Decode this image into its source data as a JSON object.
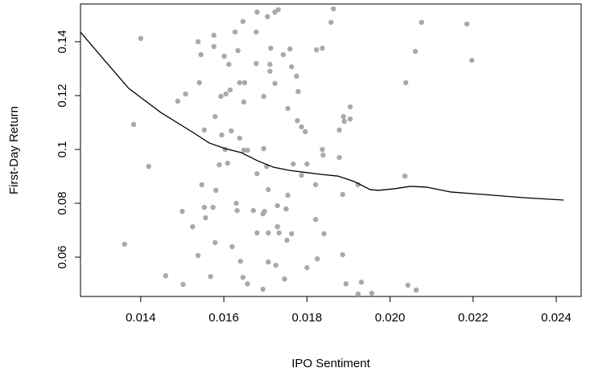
{
  "chart_data": {
    "type": "scatter",
    "x_label": "IPO Sentiment",
    "y_label": "First-Day Return",
    "xlim": [
      0.01255,
      0.0246
    ],
    "ylim": [
      0.0454,
      0.154
    ],
    "xticks": [
      0.014,
      0.016,
      0.018,
      {
        "value": 0.02,
        "label": "0.020"
      },
      0.022,
      0.024
    ],
    "yticks": [
      0.06,
      0.08,
      0.1,
      0.12,
      0.14
    ],
    "points": {
      "color": "#a9a9a9",
      "x": [
        0.014,
        0.01383,
        0.01419,
        0.01361,
        0.0146,
        0.01489,
        0.01508,
        0.01502,
        0.015,
        0.01525,
        0.01538,
        0.01545,
        0.01541,
        0.01538,
        0.01547,
        0.01553,
        0.01556,
        0.01553,
        0.01568,
        0.01574,
        0.01576,
        0.01576,
        0.01579,
        0.01581,
        0.01579,
        0.01589,
        0.01593,
        0.01595,
        0.01603,
        0.01601,
        0.01605,
        0.01615,
        0.01612,
        0.01609,
        0.01618,
        0.0162,
        0.0163,
        0.01632,
        0.01627,
        0.01634,
        0.01638,
        0.01638,
        0.0165,
        0.01646,
        0.01648,
        0.0164,
        0.01646,
        0.01657,
        0.01648,
        0.01657,
        0.01671,
        0.01678,
        0.01678,
        0.0168,
        0.0168,
        0.0168,
        0.01694,
        0.01696,
        0.01698,
        0.01694,
        0.01696,
        0.01703,
        0.01707,
        0.01705,
        0.01707,
        0.01707,
        0.01711,
        0.01711,
        0.01713,
        0.01723,
        0.01723,
        0.01725,
        0.01729,
        0.01731,
        0.01729,
        0.01733,
        0.01743,
        0.01746,
        0.0175,
        0.01752,
        0.01754,
        0.01754,
        0.01763,
        0.01763,
        0.01759,
        0.01767,
        0.01775,
        0.01777,
        0.01779,
        0.01787,
        0.01787,
        0.01796,
        0.018,
        0.018,
        0.01821,
        0.01821,
        0.01825,
        0.01823,
        0.01837,
        0.01837,
        0.01839,
        0.01841,
        0.01858,
        0.01864,
        0.01878,
        0.01878,
        0.01888,
        0.0189,
        0.01886,
        0.01886,
        0.01894,
        0.01904,
        0.01904,
        0.01923,
        0.01923,
        0.01931,
        0.01956,
        0.02036,
        0.02038,
        0.02061,
        0.02076,
        0.02043,
        0.02063,
        0.02185,
        0.02197
      ],
      "y": [
        0.1412,
        0.1093,
        0.0937,
        0.0648,
        0.0531,
        0.1179,
        0.1206,
        0.0499,
        0.077,
        0.0713,
        0.14,
        0.1352,
        0.1248,
        0.0606,
        0.0869,
        0.0785,
        0.0746,
        0.1072,
        0.0528,
        0.0785,
        0.1424,
        0.1382,
        0.1122,
        0.0848,
        0.0654,
        0.0943,
        0.1197,
        0.1054,
        0.1,
        0.1346,
        0.1206,
        0.1221,
        0.1316,
        0.0949,
        0.1069,
        0.0639,
        0.08,
        0.0773,
        0.1436,
        0.1367,
        0.1042,
        0.1248,
        0.1248,
        0.1475,
        0.1176,
        0.0585,
        0.0525,
        0.0501,
        0.0997,
        0.0997,
        0.0773,
        0.1436,
        0.1319,
        0.091,
        0.069,
        0.151,
        0.0481,
        0.1003,
        0.077,
        0.0761,
        0.1197,
        0.0937,
        0.0851,
        0.1493,
        0.0582,
        0.069,
        0.1316,
        0.129,
        0.1376,
        0.1245,
        0.151,
        0.057,
        0.0791,
        0.1519,
        0.0713,
        0.069,
        0.1352,
        0.0519,
        0.0779,
        0.0663,
        0.083,
        0.1152,
        0.0687,
        0.1307,
        0.1373,
        0.0946,
        0.1272,
        0.1107,
        0.1215,
        0.1084,
        0.0904,
        0.1066,
        0.0946,
        0.0561,
        0.074,
        0.0869,
        0.0594,
        0.137,
        0.1376,
        0.1,
        0.0979,
        0.0687,
        0.1472,
        0.1522,
        0.1072,
        0.097,
        0.1122,
        0.1104,
        0.0833,
        0.0609,
        0.0501,
        0.1158,
        0.1113,
        0.0869,
        0.0463,
        0.0507,
        0.0466,
        0.0901,
        0.1248,
        0.1364,
        0.1472,
        0.0496,
        0.0478,
        0.1466,
        0.1331
      ]
    },
    "smooth": {
      "color": "#000000",
      "x": [
        0.012547,
        0.013128,
        0.013709,
        0.014484,
        0.01526,
        0.015647,
        0.016035,
        0.016422,
        0.01681,
        0.017198,
        0.017585,
        0.01836,
        0.018748,
        0.019136,
        0.019523,
        0.019717,
        0.020105,
        0.020492,
        0.02088,
        0.021461,
        0.022236,
        0.023205,
        0.024174
      ],
      "y": [
        0.1436,
        0.1331,
        0.1227,
        0.1137,
        0.1063,
        0.1024,
        0.1003,
        0.0988,
        0.0958,
        0.0934,
        0.0922,
        0.0907,
        0.0901,
        0.0881,
        0.0851,
        0.0848,
        0.0854,
        0.0863,
        0.086,
        0.0842,
        0.0833,
        0.0821,
        0.0812
      ]
    }
  }
}
